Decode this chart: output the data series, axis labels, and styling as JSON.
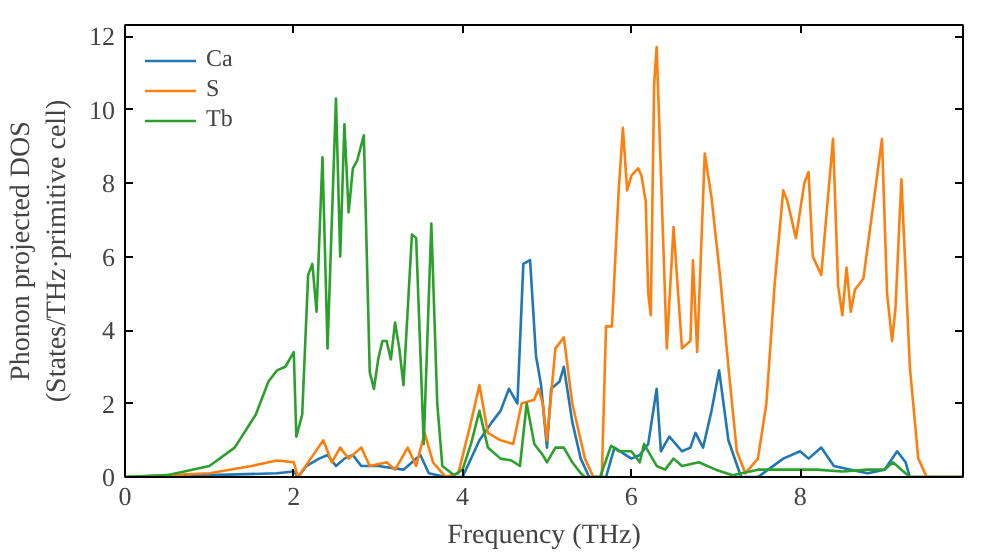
{
  "chart_data": {
    "type": "line",
    "xlabel": "Frequency (THz)",
    "ylabel": "Phonon projected DOS\n(States/THz·primitive cell)",
    "xlim": [
      0,
      9.93
    ],
    "ylim": [
      0,
      12.3
    ],
    "xticks": [
      0,
      2,
      4,
      6,
      8
    ],
    "yticks": [
      0,
      2,
      4,
      6,
      8,
      10,
      12
    ],
    "grid": false,
    "legend": "top left",
    "line_style": "solid",
    "marker": "none",
    "series": [
      {
        "name": "Ca",
        "color": "#1f77b4",
        "x": [
          0,
          1.0,
          1.8,
          2.0,
          2.05,
          2.15,
          2.3,
          2.4,
          2.5,
          2.6,
          2.7,
          2.8,
          3.0,
          3.3,
          3.5,
          3.6,
          3.8,
          4.0,
          4.2,
          4.35,
          4.45,
          4.55,
          4.65,
          4.72,
          4.8,
          4.87,
          4.93,
          5.0,
          5.05,
          5.15,
          5.2,
          5.3,
          5.4,
          5.5,
          5.7,
          5.8,
          6.0,
          6.1,
          6.2,
          6.3,
          6.35,
          6.45,
          6.6,
          6.7,
          6.76,
          6.85,
          6.95,
          7.04,
          7.15,
          7.3,
          7.5,
          7.8,
          8.0,
          8.1,
          8.25,
          8.4,
          8.6,
          8.8,
          9.0,
          9.15,
          9.25,
          9.3,
          9.93
        ],
        "values": [
          0,
          0.05,
          0.1,
          0.15,
          0,
          0.3,
          0.5,
          0.6,
          0.3,
          0.5,
          0.6,
          0.3,
          0.3,
          0.2,
          0.6,
          0.1,
          0,
          0,
          1.0,
          1.5,
          1.8,
          2.4,
          2.0,
          5.8,
          5.9,
          3.3,
          2.5,
          0.8,
          2.4,
          2.6,
          3.0,
          1.5,
          0.5,
          0,
          0,
          0.8,
          0.5,
          0.6,
          0.9,
          2.4,
          0.7,
          1.1,
          0.7,
          0.8,
          1.2,
          0.8,
          1.8,
          2.9,
          1.0,
          0,
          0,
          0.5,
          0.7,
          0.5,
          0.8,
          0.3,
          0.2,
          0.1,
          0.2,
          0.7,
          0.4,
          0,
          0
        ]
      },
      {
        "name": "S",
        "color": "#ff7f0e",
        "x": [
          0,
          1.0,
          1.5,
          1.8,
          2.0,
          2.05,
          2.2,
          2.35,
          2.45,
          2.55,
          2.65,
          2.8,
          2.9,
          3.1,
          3.2,
          3.35,
          3.45,
          3.55,
          3.65,
          3.8,
          3.95,
          4.1,
          4.2,
          4.3,
          4.45,
          4.6,
          4.7,
          4.85,
          4.9,
          4.95,
          5.0,
          5.1,
          5.2,
          5.3,
          5.45,
          5.55,
          5.65,
          5.7,
          5.77,
          5.85,
          5.9,
          5.95,
          6.0,
          6.08,
          6.12,
          6.17,
          6.2,
          6.23,
          6.27,
          6.3,
          6.42,
          6.5,
          6.6,
          6.7,
          6.73,
          6.78,
          6.87,
          6.95,
          7.05,
          7.15,
          7.25,
          7.35,
          7.5,
          7.6,
          7.7,
          7.8,
          7.85,
          7.95,
          8.05,
          8.1,
          8.15,
          8.25,
          8.39,
          8.45,
          8.5,
          8.55,
          8.6,
          8.65,
          8.75,
          8.97,
          9.03,
          9.09,
          9.13,
          9.2,
          9.3,
          9.4,
          9.5,
          9.93
        ],
        "values": [
          0,
          0.1,
          0.3,
          0.45,
          0.4,
          0,
          0.5,
          1.0,
          0.4,
          0.8,
          0.5,
          0.8,
          0.3,
          0.4,
          0.2,
          0.8,
          0.3,
          1.2,
          0.4,
          0,
          0.1,
          1.5,
          2.5,
          1.2,
          1.0,
          0.9,
          2.0,
          2.1,
          2.4,
          2.0,
          1.0,
          3.5,
          3.8,
          2.0,
          0.5,
          0,
          0,
          4.1,
          4.1,
          7.8,
          9.5,
          7.8,
          8.2,
          8.4,
          8.2,
          7.5,
          5.0,
          4.4,
          10.7,
          11.7,
          3.5,
          6.8,
          3.5,
          3.7,
          5.9,
          3.4,
          8.8,
          7.6,
          5.5,
          3.0,
          0.7,
          0.1,
          0.5,
          2.0,
          5.3,
          7.8,
          7.5,
          6.5,
          8.0,
          8.3,
          6.0,
          5.5,
          9.2,
          5.2,
          4.4,
          5.7,
          4.5,
          5.1,
          5.4,
          9.2,
          5.0,
          3.7,
          4.6,
          8.1,
          3.0,
          0.5,
          0,
          0
        ]
      },
      {
        "name": "Tb",
        "color": "#2ca02c",
        "x": [
          0,
          0.5,
          1.0,
          1.3,
          1.55,
          1.7,
          1.8,
          1.9,
          2.0,
          2.03,
          2.1,
          2.17,
          2.22,
          2.27,
          2.34,
          2.4,
          2.5,
          2.55,
          2.6,
          2.65,
          2.7,
          2.75,
          2.83,
          2.9,
          2.95,
          3.0,
          3.05,
          3.1,
          3.15,
          3.2,
          3.25,
          3.3,
          3.4,
          3.45,
          3.54,
          3.63,
          3.7,
          3.76,
          3.9,
          4.0,
          4.1,
          4.2,
          4.3,
          4.45,
          4.58,
          4.68,
          4.76,
          4.85,
          4.95,
          5.0,
          5.1,
          5.2,
          5.3,
          5.4,
          5.45,
          5.63,
          5.76,
          5.85,
          6.0,
          6.1,
          6.15,
          6.2,
          6.3,
          6.4,
          6.5,
          6.6,
          6.8,
          7.0,
          7.2,
          7.5,
          7.8,
          8.0,
          8.2,
          8.5,
          8.8,
          9.0,
          9.1,
          9.2,
          9.3,
          9.93
        ],
        "values": [
          0,
          0.05,
          0.3,
          0.8,
          1.7,
          2.6,
          2.9,
          3.0,
          3.4,
          1.1,
          1.7,
          5.5,
          5.8,
          4.5,
          8.7,
          3.5,
          10.3,
          6.0,
          9.6,
          7.2,
          8.4,
          8.6,
          9.3,
          2.85,
          2.4,
          3.2,
          3.7,
          3.7,
          3.2,
          4.2,
          3.5,
          2.5,
          6.6,
          6.5,
          0.9,
          6.9,
          2.0,
          0.3,
          0.05,
          0.2,
          0.9,
          1.8,
          0.8,
          0.5,
          0.45,
          0.3,
          2.0,
          0.9,
          0.6,
          0.4,
          0.8,
          0.8,
          0.4,
          0.1,
          0,
          0,
          0.85,
          0.7,
          0.7,
          0.4,
          0.9,
          0.7,
          0.3,
          0.2,
          0.5,
          0.3,
          0.4,
          0.2,
          0.05,
          0.2,
          0.2,
          0.2,
          0.2,
          0.15,
          0.2,
          0.2,
          0.4,
          0.2,
          0,
          0
        ]
      }
    ]
  }
}
